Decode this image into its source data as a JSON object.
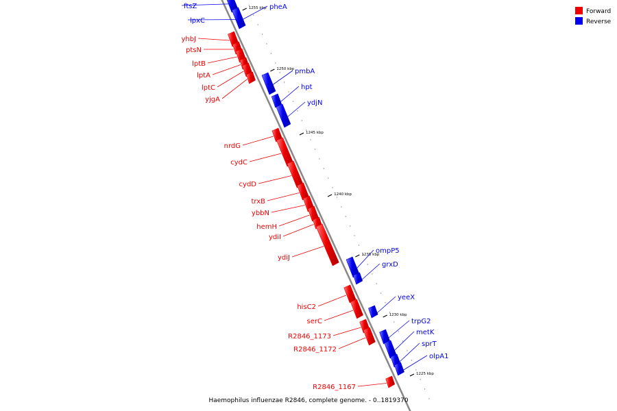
{
  "title": "Haemophilus influenzae R2846, complete genome. - 0..1819370",
  "colors": {
    "forward": "#ee0000",
    "reverse": "#0000ee",
    "backbone": "#888888",
    "tick": "#000000"
  },
  "legend": [
    {
      "label": "Forward",
      "strand": "forward"
    },
    {
      "label": "Reverse",
      "strand": "reverse"
    }
  ],
  "ticks_kbp": [
    {
      "label": "1255 kbp",
      "value": 1255
    },
    {
      "label": "1250 kbp",
      "value": 1250
    },
    {
      "label": "1245 kbp",
      "value": 1245
    },
    {
      "label": "1240 kbp",
      "value": 1240
    },
    {
      "label": "1235 kbp",
      "value": 1235
    },
    {
      "label": "1230 kbp",
      "value": 1230
    },
    {
      "label": "1225 kbp",
      "value": 1225
    }
  ],
  "genes": [
    {
      "name": "ftsZ",
      "strand": "reverse"
    },
    {
      "name": "pheA",
      "strand": "reverse"
    },
    {
      "name": "lpxC",
      "strand": "reverse"
    },
    {
      "name": "yhbJ",
      "strand": "forward"
    },
    {
      "name": "ptsN",
      "strand": "forward"
    },
    {
      "name": "lptB",
      "strand": "forward"
    },
    {
      "name": "lptA",
      "strand": "forward"
    },
    {
      "name": "lptC",
      "strand": "forward"
    },
    {
      "name": "yjgA",
      "strand": "forward"
    },
    {
      "name": "pmbA",
      "strand": "reverse"
    },
    {
      "name": "hpt",
      "strand": "reverse"
    },
    {
      "name": "ydjN",
      "strand": "reverse"
    },
    {
      "name": "nrdG",
      "strand": "forward"
    },
    {
      "name": "cydC",
      "strand": "forward"
    },
    {
      "name": "cydD",
      "strand": "forward"
    },
    {
      "name": "trxB",
      "strand": "forward"
    },
    {
      "name": "ybbN",
      "strand": "forward"
    },
    {
      "name": "hemH",
      "strand": "forward"
    },
    {
      "name": "ydiI",
      "strand": "forward"
    },
    {
      "name": "ydiJ",
      "strand": "forward"
    },
    {
      "name": "ompP5",
      "strand": "reverse"
    },
    {
      "name": "grxD",
      "strand": "reverse"
    },
    {
      "name": "hisC2",
      "strand": "forward"
    },
    {
      "name": "yeeX",
      "strand": "reverse"
    },
    {
      "name": "serC",
      "strand": "forward"
    },
    {
      "name": "trpG2",
      "strand": "reverse"
    },
    {
      "name": "R2846_1173",
      "strand": "forward"
    },
    {
      "name": "metK",
      "strand": "reverse"
    },
    {
      "name": "R2846_1172",
      "strand": "forward"
    },
    {
      "name": "sprT",
      "strand": "reverse"
    },
    {
      "name": "olpA1",
      "strand": "reverse"
    },
    {
      "name": "R2846_1167",
      "strand": "forward"
    }
  ]
}
